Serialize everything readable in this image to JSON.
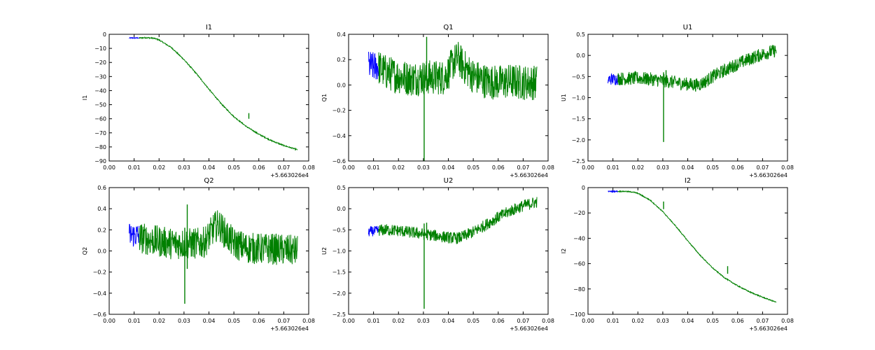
{
  "chart_data": [
    {
      "type": "line",
      "title": "I1",
      "ylabel": "I1",
      "xlabel": "",
      "x_offset_label": "+5.663026e4",
      "xlim": [
        0.0,
        0.08
      ],
      "ylim": [
        -90,
        0
      ],
      "xticks": [
        "0.00",
        "0.01",
        "0.02",
        "0.03",
        "0.04",
        "0.05",
        "0.06",
        "0.07",
        "0.08"
      ],
      "yticks": [
        "0",
        "−10",
        "−20",
        "−30",
        "−40",
        "−50",
        "−60",
        "−70",
        "−80",
        "−90"
      ],
      "grid": false,
      "series": [
        {
          "color": "#0000ff",
          "band": 0.4,
          "x": [
            0.008,
            0.009,
            0.01,
            0.011,
            0.012
          ],
          "y": [
            -2.6,
            -2.6,
            -2.6,
            -2.6,
            -2.6
          ]
        },
        {
          "color": "#008000",
          "band": 0.4,
          "x": [
            0.012,
            0.015,
            0.018,
            0.02,
            0.025,
            0.03,
            0.035,
            0.04,
            0.045,
            0.05,
            0.055,
            0.06,
            0.065,
            0.07,
            0.0755
          ],
          "y": [
            -2.6,
            -2.4,
            -2.8,
            -4.0,
            -9.5,
            -18.0,
            -28.0,
            -39.0,
            -49.5,
            -58.5,
            -65.5,
            -71.0,
            -75.5,
            -79.0,
            -82.0
          ]
        }
      ],
      "spikes": [
        {
          "x": 0.056,
          "y1": -60,
          "y2": -56
        }
      ]
    },
    {
      "type": "line",
      "title": "Q1",
      "ylabel": "Q1",
      "xlabel": "",
      "x_offset_label": "+5.663026e4",
      "xlim": [
        0.0,
        0.08
      ],
      "ylim": [
        -0.6,
        0.4
      ],
      "xticks": [
        "0.00",
        "0.01",
        "0.02",
        "0.03",
        "0.04",
        "0.05",
        "0.06",
        "0.07",
        "0.08"
      ],
      "yticks": [
        "0.4",
        "0.2",
        "0.0",
        "−0.2",
        "−0.4",
        "−0.6"
      ],
      "grid": false,
      "series": [
        {
          "color": "#0000ff",
          "band": 0.12,
          "x": [
            0.008,
            0.009,
            0.01,
            0.011,
            0.012
          ],
          "y": [
            0.15,
            0.15,
            0.14,
            0.15,
            0.14
          ]
        },
        {
          "color": "#008000",
          "band": 0.14,
          "x": [
            0.012,
            0.015,
            0.02,
            0.025,
            0.03,
            0.035,
            0.038,
            0.04,
            0.042,
            0.044,
            0.046,
            0.05,
            0.055,
            0.06,
            0.065,
            0.07,
            0.0755
          ],
          "y": [
            0.14,
            0.1,
            0.07,
            0.05,
            0.06,
            0.06,
            0.06,
            0.1,
            0.18,
            0.21,
            0.15,
            0.07,
            0.03,
            0.02,
            0.03,
            0.02,
            0.02
          ]
        }
      ],
      "spikes": [
        {
          "x": 0.0303,
          "y1": -0.6,
          "y2": 0.08
        },
        {
          "x": 0.0313,
          "y1": -0.05,
          "y2": 0.38
        }
      ]
    },
    {
      "type": "line",
      "title": "U1",
      "ylabel": "U1",
      "xlabel": "",
      "x_offset_label": "+5.663026e4",
      "xlim": [
        0.0,
        0.08
      ],
      "ylim": [
        -2.5,
        0.5
      ],
      "xticks": [
        "0.00",
        "0.01",
        "0.02",
        "0.03",
        "0.04",
        "0.05",
        "0.06",
        "0.07",
        "0.08"
      ],
      "yticks": [
        "0.5",
        "0.0",
        "−0.5",
        "−1.0",
        "−1.5",
        "−2.0",
        "−2.5"
      ],
      "grid": false,
      "series": [
        {
          "color": "#0000ff",
          "band": 0.14,
          "x": [
            0.008,
            0.009,
            0.01,
            0.011,
            0.012
          ],
          "y": [
            -0.57,
            -0.56,
            -0.56,
            -0.56,
            -0.55
          ]
        },
        {
          "color": "#008000",
          "band": 0.16,
          "x": [
            0.012,
            0.015,
            0.02,
            0.025,
            0.03,
            0.035,
            0.04,
            0.043,
            0.045,
            0.047,
            0.05,
            0.055,
            0.06,
            0.065,
            0.07,
            0.0755
          ],
          "y": [
            -0.55,
            -0.55,
            -0.54,
            -0.56,
            -0.6,
            -0.64,
            -0.68,
            -0.7,
            -0.68,
            -0.62,
            -0.5,
            -0.35,
            -0.2,
            -0.08,
            0.03,
            0.12
          ]
        }
      ],
      "spikes": [
        {
          "x": 0.0303,
          "y1": -2.05,
          "y2": -0.4
        },
        {
          "x": 0.0313,
          "y1": -0.7,
          "y2": -0.35
        }
      ]
    },
    {
      "type": "line",
      "title": "Q2",
      "ylabel": "Q2",
      "xlabel": "",
      "x_offset_label": "+5.663026e4",
      "xlim": [
        0.0,
        0.08
      ],
      "ylim": [
        -0.6,
        0.6
      ],
      "xticks": [
        "0.00",
        "0.01",
        "0.02",
        "0.03",
        "0.04",
        "0.05",
        "0.06",
        "0.07",
        "0.08"
      ],
      "yticks": [
        "0.6",
        "0.4",
        "0.2",
        "0.0",
        "−0.2",
        "−0.4",
        "−0.6"
      ],
      "grid": false,
      "series": [
        {
          "color": "#0000ff",
          "band": 0.12,
          "x": [
            0.008,
            0.009,
            0.01,
            0.011,
            0.012
          ],
          "y": [
            0.15,
            0.15,
            0.15,
            0.15,
            0.14
          ]
        },
        {
          "color": "#008000",
          "band": 0.15,
          "x": [
            0.012,
            0.015,
            0.02,
            0.025,
            0.03,
            0.035,
            0.038,
            0.04,
            0.042,
            0.044,
            0.046,
            0.05,
            0.055,
            0.06,
            0.065,
            0.07,
            0.0755
          ],
          "y": [
            0.13,
            0.11,
            0.09,
            0.07,
            0.07,
            0.07,
            0.08,
            0.14,
            0.22,
            0.25,
            0.18,
            0.07,
            0.03,
            0.02,
            0.02,
            0.01,
            0.0
          ]
        }
      ],
      "spikes": [
        {
          "x": 0.0303,
          "y1": -0.5,
          "y2": 0.22
        },
        {
          "x": 0.0313,
          "y1": -0.17,
          "y2": 0.44
        }
      ]
    },
    {
      "type": "line",
      "title": "U2",
      "ylabel": "U2",
      "xlabel": "",
      "x_offset_label": "+5.663026e4",
      "xlim": [
        0.0,
        0.08
      ],
      "ylim": [
        -2.5,
        0.5
      ],
      "xticks": [
        "0.00",
        "0.01",
        "0.02",
        "0.03",
        "0.04",
        "0.05",
        "0.06",
        "0.07",
        "0.08"
      ],
      "yticks": [
        "0.5",
        "0.0",
        "−0.5",
        "−1.0",
        "−1.5",
        "−2.0",
        "−2.5"
      ],
      "grid": false,
      "series": [
        {
          "color": "#0000ff",
          "band": 0.12,
          "x": [
            0.008,
            0.009,
            0.01,
            0.011,
            0.012
          ],
          "y": [
            -0.55,
            -0.54,
            -0.53,
            -0.53,
            -0.52
          ]
        },
        {
          "color": "#008000",
          "band": 0.14,
          "x": [
            0.012,
            0.015,
            0.02,
            0.025,
            0.03,
            0.035,
            0.04,
            0.043,
            0.045,
            0.05,
            0.055,
            0.06,
            0.065,
            0.07,
            0.0755
          ],
          "y": [
            -0.51,
            -0.5,
            -0.52,
            -0.56,
            -0.6,
            -0.64,
            -0.68,
            -0.7,
            -0.68,
            -0.55,
            -0.38,
            -0.2,
            -0.05,
            0.07,
            0.16
          ]
        }
      ],
      "spikes": [
        {
          "x": 0.0303,
          "y1": -2.37,
          "y2": -0.35
        },
        {
          "x": 0.0313,
          "y1": -0.7,
          "y2": -0.33
        }
      ]
    },
    {
      "type": "line",
      "title": "I2",
      "ylabel": "I2",
      "xlabel": "",
      "x_offset_label": "+5.663026e4",
      "xlim": [
        0.0,
        0.08
      ],
      "ylim": [
        -100,
        0
      ],
      "xticks": [
        "0.00",
        "0.01",
        "0.02",
        "0.03",
        "0.04",
        "0.05",
        "0.06",
        "0.07",
        "0.08"
      ],
      "yticks": [
        "0",
        "−20",
        "−40",
        "−60",
        "−80",
        "−100"
      ],
      "grid": false,
      "series": [
        {
          "color": "#0000ff",
          "band": 0.4,
          "x": [
            0.008,
            0.009,
            0.01,
            0.011,
            0.012
          ],
          "y": [
            -3.0,
            -3.0,
            -3.0,
            -3.0,
            -3.0
          ]
        },
        {
          "color": "#008000",
          "band": 0.4,
          "x": [
            0.012,
            0.015,
            0.018,
            0.02,
            0.025,
            0.03,
            0.035,
            0.04,
            0.045,
            0.05,
            0.055,
            0.06,
            0.065,
            0.07,
            0.0755
          ],
          "y": [
            -3.0,
            -3.0,
            -3.5,
            -4.5,
            -10.0,
            -19.0,
            -30.0,
            -42.0,
            -53.5,
            -63.5,
            -71.5,
            -77.5,
            -82.5,
            -86.5,
            -90.5
          ]
        }
      ],
      "spikes": [
        {
          "x": 0.0303,
          "y1": -17,
          "y2": -11
        },
        {
          "x": 0.056,
          "y1": -68,
          "y2": -62
        }
      ]
    }
  ]
}
